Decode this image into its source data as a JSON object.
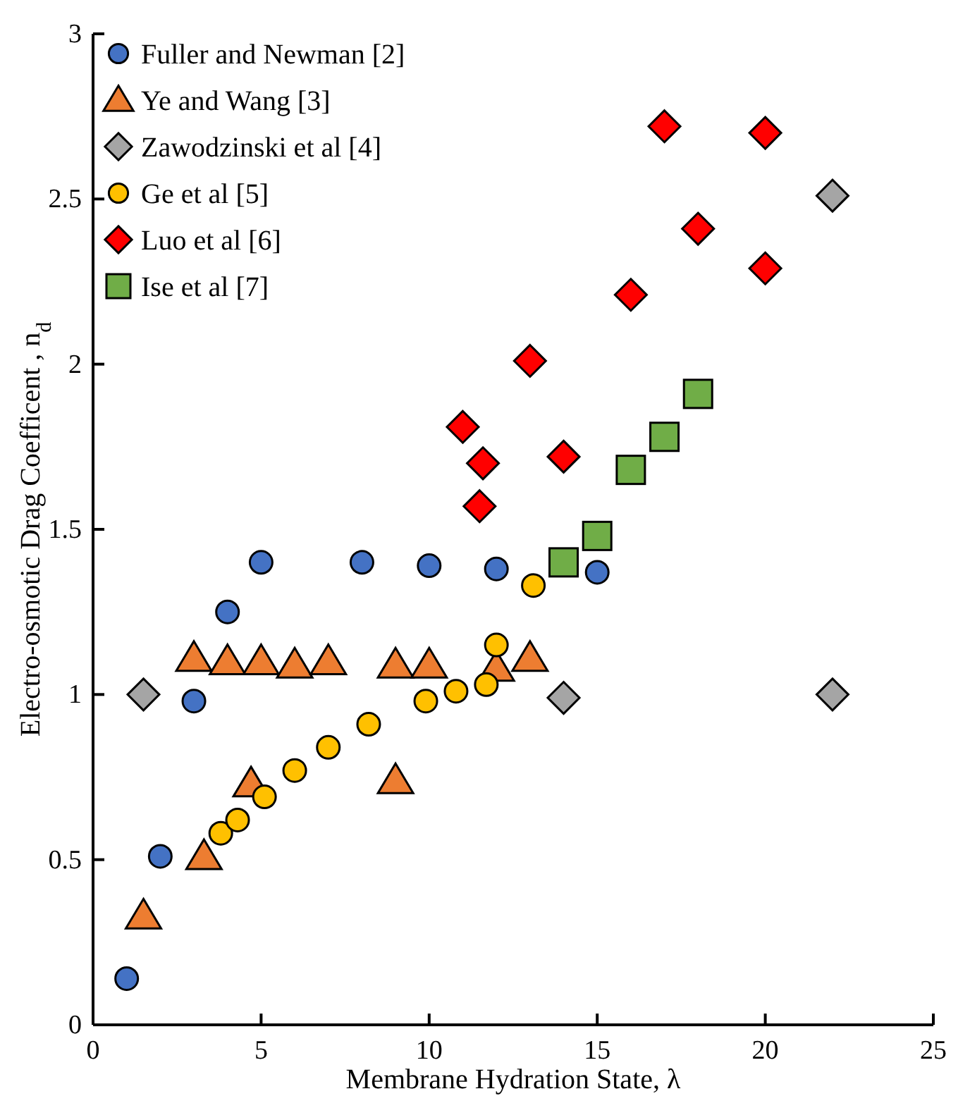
{
  "chart_data": {
    "type": "scatter",
    "xlabel": "Membrane Hydration State, λ",
    "ylabel": "Electro-osmotic Drag Coefficent , n$_{d}$",
    "xlim": [
      0,
      25
    ],
    "ylim": [
      0,
      3
    ],
    "xticks": [
      0,
      5,
      10,
      15,
      20,
      25
    ],
    "yticks": [
      0,
      0.5,
      1,
      1.5,
      2,
      2.5,
      3
    ],
    "grid": false,
    "legend": "top left",
    "series": [
      {
        "name": "Fuller and Newman [2]",
        "color": "#4472c4",
        "marker": "circle",
        "x": [
          1,
          2,
          3,
          4,
          5,
          8,
          10,
          12,
          15
        ],
        "values": [
          0.14,
          0.51,
          0.98,
          1.25,
          1.4,
          1.4,
          1.39,
          1.38,
          1.37
        ]
      },
      {
        "name": "Ye and Wang [3]",
        "color": "#ed7d31",
        "marker": "triangle",
        "x": [
          1.5,
          3,
          3.3,
          4,
          4.7,
          5,
          6,
          7,
          9,
          9,
          10,
          12,
          13
        ],
        "values": [
          0.33,
          1.11,
          0.51,
          1.1,
          0.73,
          1.1,
          1.09,
          1.1,
          1.09,
          0.74,
          1.09,
          1.08,
          1.11
        ]
      },
      {
        "name": "Zawodzinski et al [4]",
        "color": "#a5a5a5",
        "marker": "diamond",
        "x": [
          1.5,
          14,
          22,
          22
        ],
        "values": [
          1,
          0.99,
          1,
          2.51
        ]
      },
      {
        "name": "Ge et al [5]",
        "color": "#ffc000",
        "marker": "circle",
        "x": [
          3.8,
          4.3,
          5.1,
          6,
          7,
          8.2,
          9.9,
          10.8,
          11.7,
          12,
          13.1
        ],
        "values": [
          0.58,
          0.62,
          0.69,
          0.77,
          0.84,
          0.91,
          0.98,
          1.01,
          1.03,
          1.15,
          1.33
        ]
      },
      {
        "name": "Luo et al [6]",
        "color": "#ff0000",
        "marker": "diamond",
        "x": [
          11,
          11.6,
          11.5,
          13,
          14,
          16,
          17,
          18,
          20,
          20
        ],
        "values": [
          1.81,
          1.7,
          1.57,
          2.01,
          1.72,
          2.21,
          2.72,
          2.41,
          2.7,
          2.29
        ]
      },
      {
        "name": "Ise et al [7]",
        "color": "#70ad47",
        "marker": "square",
        "x": [
          14,
          15,
          16,
          17,
          18
        ],
        "values": [
          1.4,
          1.48,
          1.68,
          1.78,
          1.91
        ]
      }
    ]
  }
}
